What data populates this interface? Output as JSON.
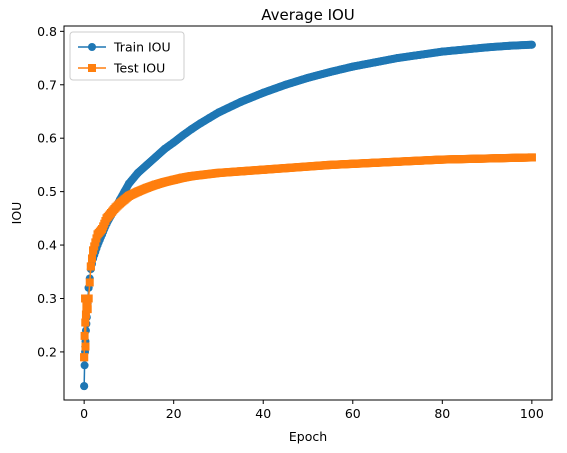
{
  "chart_data": {
    "type": "line",
    "title": "Average IOU",
    "xlabel": "Epoch",
    "ylabel": "IOU",
    "xlim": [
      -4.5,
      104.5
    ],
    "ylim": [
      0.11,
      0.81
    ],
    "xticks": [
      0,
      20,
      40,
      60,
      80,
      100
    ],
    "yticks": [
      0.2,
      0.3,
      0.4,
      0.5,
      0.6,
      0.7,
      0.8
    ],
    "grid": false,
    "legend_position": "top-left",
    "series": [
      {
        "name": "Train IOU",
        "color": "#1f77b4",
        "marker": "circle",
        "x": [
          0,
          0.1,
          0.2,
          0.3,
          0.4,
          0.6,
          0.8,
          1,
          1.5,
          2,
          3,
          4,
          5,
          6,
          7,
          8,
          9,
          10,
          12,
          14,
          16,
          18,
          20,
          22,
          24,
          26,
          28,
          30,
          35,
          40,
          45,
          50,
          55,
          60,
          65,
          70,
          75,
          80,
          85,
          90,
          95,
          100
        ],
        "y": [
          0.136,
          0.175,
          0.2,
          0.22,
          0.24,
          0.265,
          0.29,
          0.32,
          0.355,
          0.375,
          0.4,
          0.42,
          0.44,
          0.455,
          0.47,
          0.485,
          0.5,
          0.515,
          0.535,
          0.55,
          0.565,
          0.58,
          0.592,
          0.605,
          0.617,
          0.628,
          0.638,
          0.648,
          0.668,
          0.685,
          0.7,
          0.713,
          0.724,
          0.734,
          0.742,
          0.75,
          0.756,
          0.762,
          0.766,
          0.77,
          0.773,
          0.775
        ]
      },
      {
        "name": "Test IOU",
        "color": "#ff7f0e",
        "marker": "square",
        "x": [
          0,
          0.1,
          0.2,
          0.3,
          0.4,
          0.6,
          0.8,
          1,
          1.5,
          2,
          3,
          4,
          5,
          6,
          7,
          8,
          9,
          10,
          12,
          14,
          16,
          18,
          20,
          22,
          24,
          26,
          28,
          30,
          35,
          40,
          45,
          50,
          55,
          60,
          65,
          70,
          75,
          80,
          85,
          90,
          95,
          100
        ],
        "y": [
          0.19,
          0.23,
          0.3,
          0.21,
          0.27,
          0.3,
          0.28,
          0.3,
          0.36,
          0.39,
          0.42,
          0.43,
          0.45,
          0.46,
          0.47,
          0.478,
          0.485,
          0.492,
          0.5,
          0.507,
          0.513,
          0.518,
          0.522,
          0.526,
          0.529,
          0.531,
          0.533,
          0.535,
          0.538,
          0.541,
          0.544,
          0.547,
          0.55,
          0.552,
          0.554,
          0.556,
          0.558,
          0.56,
          0.561,
          0.562,
          0.563,
          0.564
        ]
      }
    ]
  }
}
